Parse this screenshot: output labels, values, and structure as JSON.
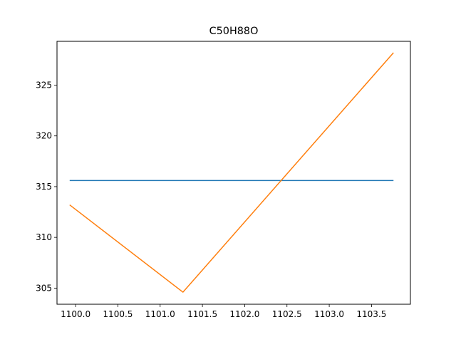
{
  "chart_data": {
    "type": "line",
    "title": "C50H88O",
    "xlabel": "",
    "ylabel": "",
    "xlim": [
      1099.78,
      1103.96
    ],
    "ylim": [
      303.41,
      329.32
    ],
    "xticks": [
      1100.0,
      1100.5,
      1101.0,
      1101.5,
      1102.0,
      1102.5,
      1103.0,
      1103.5
    ],
    "xtick_labels": [
      "1100.0",
      "1100.5",
      "1101.0",
      "1101.5",
      "1102.0",
      "1102.5",
      "1103.0",
      "1103.5"
    ],
    "yticks": [
      305,
      310,
      315,
      320,
      325
    ],
    "ytick_labels": [
      "305",
      "310",
      "315",
      "320",
      "325"
    ],
    "grid": false,
    "series": [
      {
        "color": "#1f77b4",
        "x": [
          1099.93,
          1103.76
        ],
        "y": [
          315.6,
          315.6
        ]
      },
      {
        "color": "#ff7f0e",
        "x": [
          1099.93,
          1101.27,
          1103.76
        ],
        "y": [
          313.2,
          304.6,
          328.2
        ]
      }
    ]
  }
}
